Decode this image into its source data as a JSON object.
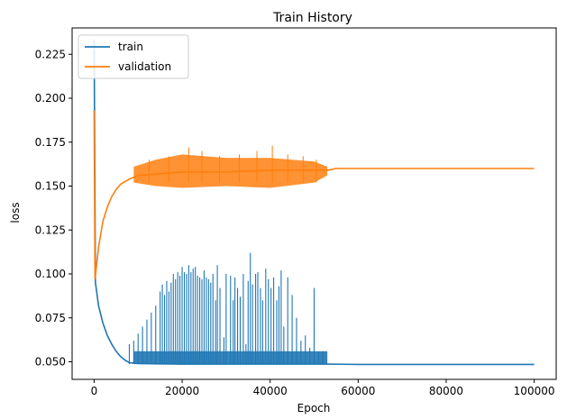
{
  "chart_data": {
    "type": "line",
    "title": "Train History",
    "xlabel": "Epoch",
    "ylabel": "loss",
    "xlim": [
      -5000,
      105000
    ],
    "ylim": [
      0.04,
      0.24
    ],
    "xticks": [
      0,
      20000,
      40000,
      60000,
      80000,
      100000
    ],
    "yticks": [
      0.05,
      0.075,
      0.1,
      0.125,
      0.15,
      0.175,
      0.2,
      0.225
    ],
    "ytick_labels": [
      "0.050",
      "0.075",
      "0.100",
      "0.125",
      "0.150",
      "0.175",
      "0.200",
      "0.225"
    ],
    "grid": false,
    "legend_position": "top-left",
    "series": [
      {
        "name": "train",
        "color": "#1f77b4",
        "x": [
          0,
          300,
          1000,
          2000,
          3000,
          4000,
          5000,
          6000,
          7000,
          8000,
          10000,
          15000,
          20000,
          30000,
          40000,
          50000,
          53000,
          60000,
          80000,
          100000
        ],
        "y": [
          0.233,
          0.095,
          0.082,
          0.072,
          0.065,
          0.06,
          0.056,
          0.053,
          0.051,
          0.0495,
          0.049,
          0.0488,
          0.0487,
          0.0487,
          0.0487,
          0.0487,
          0.0487,
          0.0485,
          0.0485,
          0.0485
        ]
      },
      {
        "name": "validation",
        "color": "#ff7f0e",
        "x": [
          0,
          200,
          1000,
          2000,
          3000,
          4000,
          5000,
          6000,
          8000,
          10000,
          15000,
          20000,
          30000,
          40000,
          50000,
          53000,
          55000,
          60000,
          80000,
          100000
        ],
        "y": [
          0.193,
          0.097,
          0.115,
          0.13,
          0.138,
          0.144,
          0.148,
          0.151,
          0.154,
          0.156,
          0.157,
          0.158,
          0.158,
          0.159,
          0.159,
          0.159,
          0.16,
          0.16,
          0.16,
          0.16
        ]
      }
    ],
    "noise": {
      "train_spikes": [
        [
          8000,
          0.06
        ],
        [
          9000,
          0.062
        ],
        [
          10000,
          0.066
        ],
        [
          11000,
          0.07
        ],
        [
          12000,
          0.074
        ],
        [
          13000,
          0.078
        ],
        [
          14000,
          0.082
        ],
        [
          15000,
          0.09
        ],
        [
          15500,
          0.094
        ],
        [
          16000,
          0.088
        ],
        [
          16500,
          0.096
        ],
        [
          17000,
          0.09
        ],
        [
          17500,
          0.095
        ],
        [
          18000,
          0.1
        ],
        [
          18500,
          0.097
        ],
        [
          19000,
          0.101
        ],
        [
          19500,
          0.099
        ],
        [
          20000,
          0.104
        ],
        [
          20500,
          0.101
        ],
        [
          21000,
          0.1
        ],
        [
          21500,
          0.105
        ],
        [
          22000,
          0.101
        ],
        [
          22500,
          0.103
        ],
        [
          23000,
          0.104
        ],
        [
          23500,
          0.099
        ],
        [
          24000,
          0.098
        ],
        [
          24500,
          0.097
        ],
        [
          25000,
          0.102
        ],
        [
          25500,
          0.098
        ],
        [
          26000,
          0.097
        ],
        [
          26500,
          0.095
        ],
        [
          27000,
          0.1
        ],
        [
          27600,
          0.085
        ],
        [
          28000,
          0.105
        ],
        [
          28600,
          0.092
        ],
        [
          29500,
          0.064
        ],
        [
          30000,
          0.1
        ],
        [
          31000,
          0.099
        ],
        [
          31600,
          0.085
        ],
        [
          32000,
          0.098
        ],
        [
          32600,
          0.092
        ],
        [
          33200,
          0.087
        ],
        [
          33900,
          0.1
        ],
        [
          34500,
          0.06
        ],
        [
          35000,
          0.096
        ],
        [
          35500,
          0.112
        ],
        [
          36000,
          0.094
        ],
        [
          36700,
          0.1
        ],
        [
          37200,
          0.101
        ],
        [
          37800,
          0.092
        ],
        [
          38300,
          0.085
        ],
        [
          39000,
          0.103
        ],
        [
          39600,
          0.097
        ],
        [
          40200,
          0.092
        ],
        [
          40800,
          0.098
        ],
        [
          41500,
          0.085
        ],
        [
          42000,
          0.093
        ],
        [
          42500,
          0.102
        ],
        [
          43100,
          0.07
        ],
        [
          44000,
          0.098
        ],
        [
          45000,
          0.088
        ],
        [
          46000,
          0.075
        ],
        [
          47000,
          0.062
        ],
        [
          48000,
          0.065
        ],
        [
          49000,
          0.058
        ],
        [
          50000,
          0.092
        ],
        [
          51000,
          0.055
        ],
        [
          52000,
          0.056
        ]
      ],
      "validation_band": [
        [
          9000,
          0.152,
          0.161
        ],
        [
          14000,
          0.15,
          0.165
        ],
        [
          20000,
          0.149,
          0.168
        ],
        [
          30000,
          0.15,
          0.166
        ],
        [
          40000,
          0.149,
          0.166
        ],
        [
          50000,
          0.152,
          0.164
        ],
        [
          53000,
          0.156,
          0.161
        ]
      ],
      "validation_spikes": [
        [
          12500,
          0.165
        ],
        [
          17000,
          0.167
        ],
        [
          21500,
          0.172
        ],
        [
          24500,
          0.17
        ],
        [
          28500,
          0.167
        ],
        [
          33000,
          0.168
        ],
        [
          37000,
          0.17
        ],
        [
          40500,
          0.173
        ],
        [
          44000,
          0.168
        ],
        [
          47500,
          0.167
        ],
        [
          50500,
          0.165
        ]
      ]
    }
  }
}
